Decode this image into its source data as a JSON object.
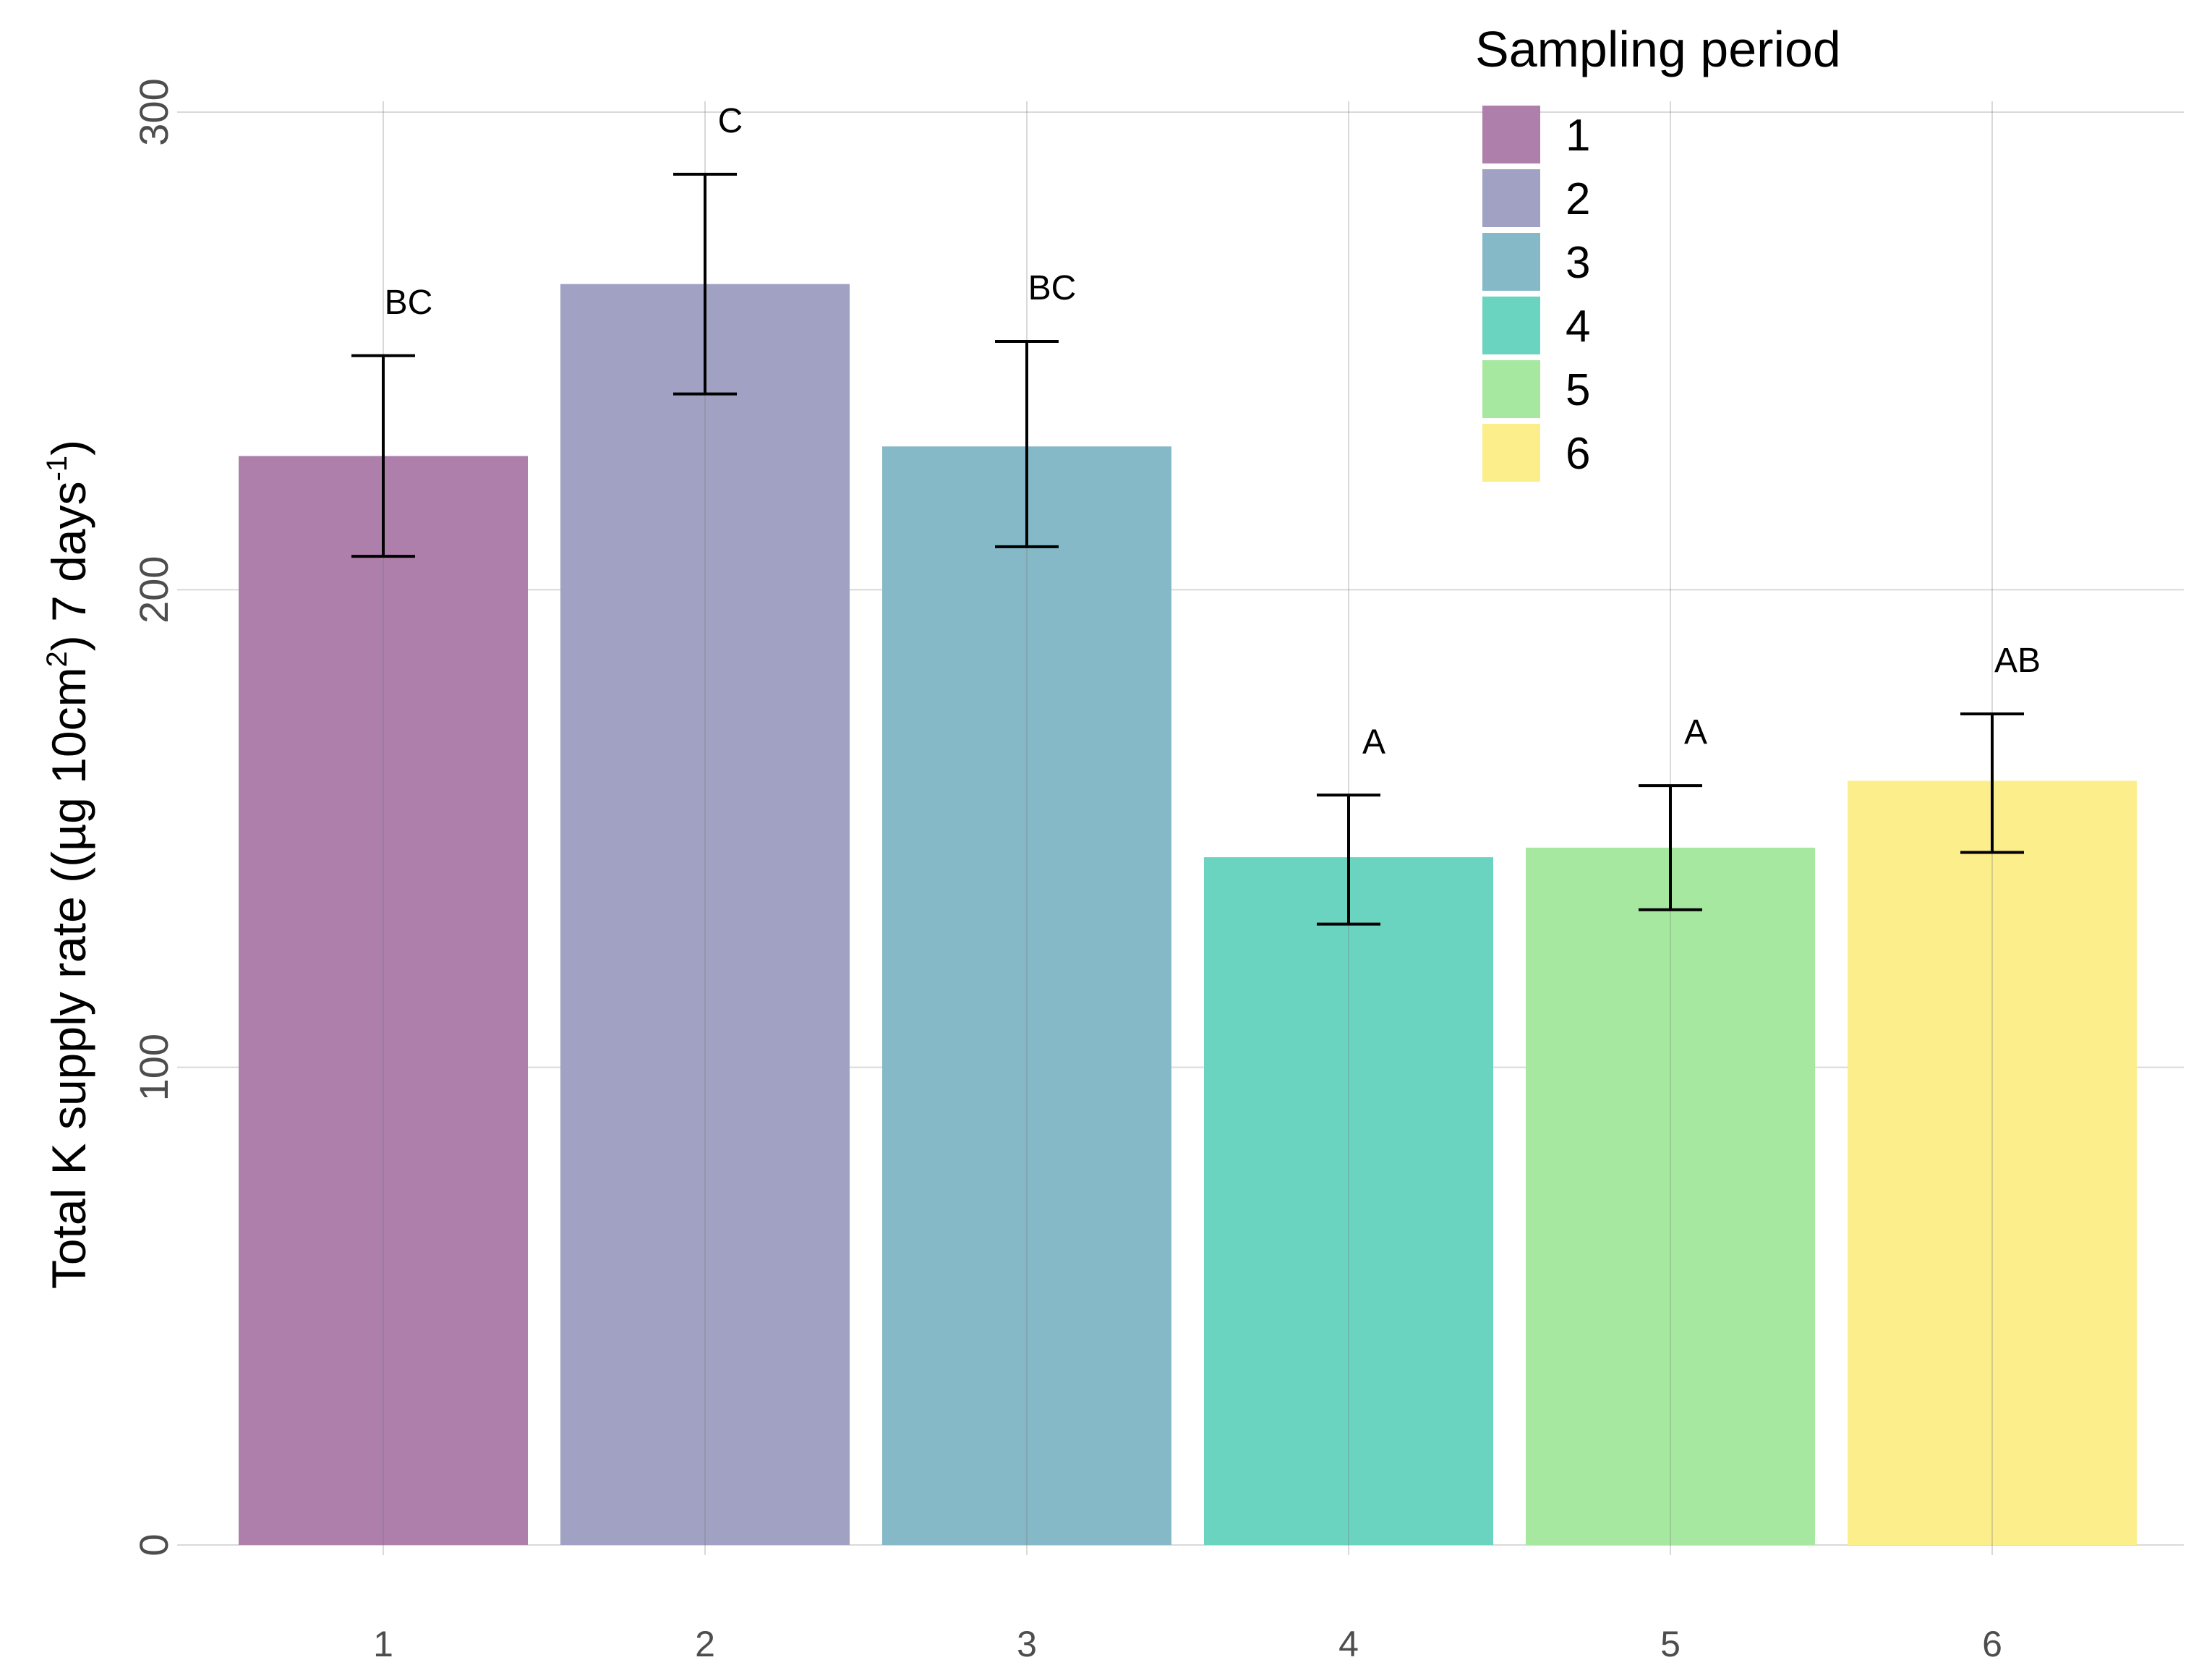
{
  "chart_data": {
    "type": "bar",
    "title": "",
    "xlabel": "",
    "ylabel": {
      "parts": [
        {
          "text": "Total K supply rate ((µg 10cm",
          "sup": false
        },
        {
          "text": "2",
          "sup": true
        },
        {
          "text": ") 7 days",
          "sup": false
        },
        {
          "text": "-1",
          "sup": true
        },
        {
          "text": ")",
          "sup": false
        }
      ]
    },
    "ylim": [
      0,
      300
    ],
    "yticks": [
      "0",
      "100",
      "200",
      "300"
    ],
    "categories": [
      "1",
      "2",
      "3",
      "4",
      "5",
      "6"
    ],
    "values": [
      228,
      264,
      230,
      144,
      146,
      160
    ],
    "error_low": [
      207,
      241,
      209,
      130,
      133,
      145
    ],
    "error_high": [
      249,
      287,
      252,
      157,
      159,
      174
    ],
    "significance_labels": [
      "BC",
      "C",
      "BC",
      "A",
      "A",
      "AB"
    ],
    "colors": [
      "#ad7faa",
      "#a1a1c4",
      "#85b9c7",
      "#6bd4c1",
      "#a7e8a1",
      "#fdee8c"
    ],
    "grid": true,
    "legend": {
      "title": "Sampling period",
      "placement": "top-right",
      "entries": [
        "1",
        "2",
        "3",
        "4",
        "5",
        "6"
      ]
    }
  }
}
